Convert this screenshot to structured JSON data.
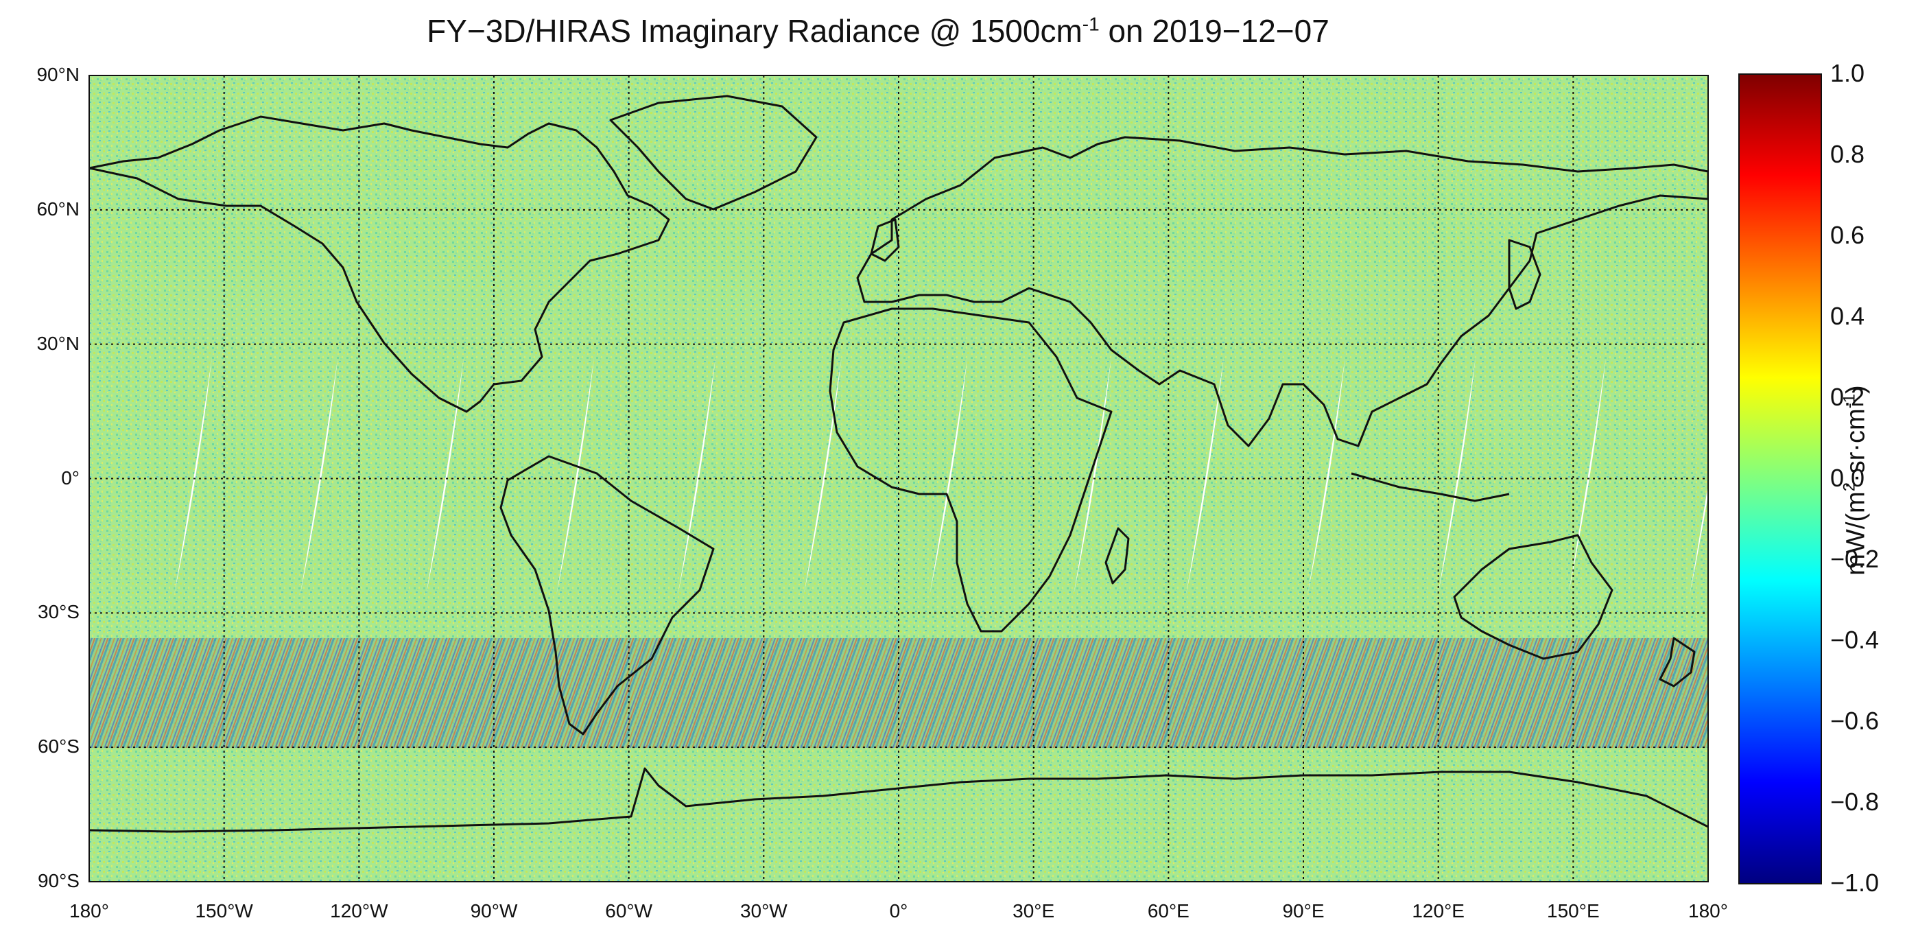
{
  "title": {
    "prefix": "FY−3D/HIRAS Imaginary Radiance @ 1500cm",
    "exponent": "-1",
    "suffix": " on 2019−12−07"
  },
  "map": {
    "lon_range": [
      -180,
      180
    ],
    "lat_range": [
      -90,
      90
    ],
    "grid": true,
    "lat_ticks": [
      {
        "value": 90,
        "label": "90°N"
      },
      {
        "value": 60,
        "label": "60°N"
      },
      {
        "value": 30,
        "label": "30°N"
      },
      {
        "value": 0,
        "label": "0°"
      },
      {
        "value": -30,
        "label": "30°S"
      },
      {
        "value": -60,
        "label": "60°S"
      },
      {
        "value": -90,
        "label": "90°S"
      }
    ],
    "lon_ticks": [
      {
        "value": -180,
        "label": "180°"
      },
      {
        "value": -150,
        "label": "150°W"
      },
      {
        "value": -120,
        "label": "120°W"
      },
      {
        "value": -90,
        "label": "90°W"
      },
      {
        "value": -60,
        "label": "60°W"
      },
      {
        "value": -30,
        "label": "30°W"
      },
      {
        "value": 0,
        "label": "0°"
      },
      {
        "value": 30,
        "label": "30°E"
      },
      {
        "value": 60,
        "label": "60°E"
      },
      {
        "value": 90,
        "label": "90°E"
      },
      {
        "value": 120,
        "label": "120°E"
      },
      {
        "value": 150,
        "label": "150°E"
      },
      {
        "value": 180,
        "label": "180°"
      }
    ],
    "colors": {
      "background_field": "#9ee68a",
      "southern_band": "#7fc49a",
      "coast": "#111111",
      "gap": "#ffffff"
    }
  },
  "colorbar": {
    "range": [
      -1.0,
      1.0
    ],
    "colormap": "jet",
    "ticks": [
      "1.0",
      "0.8",
      "0.6",
      "0.4",
      "0.2",
      "0.0",
      "−0.2",
      "−0.4",
      "−0.6",
      "−0.8",
      "−1.0"
    ],
    "label": {
      "p1": "mW/(m",
      "s1": "2",
      "p2": "·sr·cm",
      "s2": "-1",
      "p3": ")"
    }
  }
}
